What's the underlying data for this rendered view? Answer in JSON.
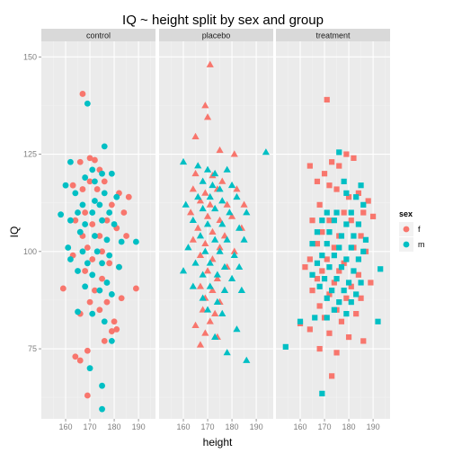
{
  "chart_data": {
    "type": "scatter",
    "title": "IQ ~ height split by sex and group",
    "xlabel": "height",
    "ylabel": "IQ",
    "xlim": [
      150,
      197
    ],
    "ylim": [
      57,
      154
    ],
    "xticks": [
      160,
      170,
      180,
      190
    ],
    "yticks": [
      75,
      100,
      125,
      150
    ],
    "panel_order": [
      "control",
      "placebo",
      "treatment"
    ],
    "panels": [
      {
        "group": "control",
        "shape": "circle"
      },
      {
        "group": "placebo",
        "shape": "triangle"
      },
      {
        "group": "treatment",
        "shape": "square"
      }
    ],
    "legend": {
      "title": "sex",
      "position": "right",
      "entries": [
        {
          "key": "f",
          "label": "f",
          "color": "#F8766D"
        },
        {
          "key": "m",
          "label": "m",
          "color": "#00BFC4"
        }
      ]
    },
    "colors": {
      "f": "#F8766D",
      "m": "#00BFC4"
    },
    "background": {
      "panel": "#EBEBEB",
      "strip": "#D9D9D9",
      "grid": "#FFFFFF"
    },
    "points": {
      "control": {
        "f": [
          [
            167,
            140.5
          ],
          [
            166,
            123
          ],
          [
            170,
            124
          ],
          [
            172,
            123.5
          ],
          [
            174,
            121
          ],
          [
            176,
            118
          ],
          [
            163,
            117
          ],
          [
            167,
            116
          ],
          [
            170,
            118
          ],
          [
            182,
            115
          ],
          [
            186,
            114
          ],
          [
            173,
            116
          ],
          [
            179,
            112
          ],
          [
            184,
            110
          ],
          [
            168,
            110
          ],
          [
            164,
            108
          ],
          [
            171,
            107
          ],
          [
            177,
            108
          ],
          [
            181,
            106
          ],
          [
            167,
            104
          ],
          [
            174,
            104
          ],
          [
            185,
            104
          ],
          [
            169,
            101
          ],
          [
            175,
            100
          ],
          [
            163,
            99
          ],
          [
            171,
            98
          ],
          [
            178,
            97
          ],
          [
            182,
            96
          ],
          [
            168,
            95
          ],
          [
            175,
            93
          ],
          [
            159,
            90.5
          ],
          [
            189,
            90.5
          ],
          [
            172,
            90
          ],
          [
            183,
            88
          ],
          [
            170,
            87
          ],
          [
            177,
            87
          ],
          [
            166,
            84
          ],
          [
            174,
            85
          ],
          [
            180,
            82
          ],
          [
            179,
            79.5
          ],
          [
            181,
            80
          ],
          [
            176,
            77
          ],
          [
            169,
            74.5
          ],
          [
            164,
            73
          ],
          [
            166,
            72
          ],
          [
            169,
            63
          ]
        ],
        "m": [
          [
            169,
            138
          ],
          [
            176,
            127
          ],
          [
            162,
            123
          ],
          [
            171,
            121
          ],
          [
            175,
            120
          ],
          [
            179,
            120
          ],
          [
            168,
            119
          ],
          [
            172,
            118
          ],
          [
            160,
            117
          ],
          [
            164,
            115
          ],
          [
            176,
            115
          ],
          [
            181,
            114
          ],
          [
            167,
            112
          ],
          [
            172,
            113
          ],
          [
            174,
            112
          ],
          [
            165,
            110
          ],
          [
            171,
            110
          ],
          [
            178,
            110
          ],
          [
            158,
            109.5
          ],
          [
            162,
            108
          ],
          [
            168,
            107
          ],
          [
            175,
            108
          ],
          [
            180,
            107
          ],
          [
            166,
            105
          ],
          [
            172,
            104
          ],
          [
            177,
            103
          ],
          [
            183,
            102.5
          ],
          [
            189,
            102.5
          ],
          [
            161,
            101
          ],
          [
            167,
            100
          ],
          [
            173,
            100
          ],
          [
            178,
            99
          ],
          [
            162,
            98
          ],
          [
            169,
            97
          ],
          [
            175,
            97
          ],
          [
            182,
            96
          ],
          [
            165,
            95
          ],
          [
            171,
            94
          ],
          [
            177,
            92
          ],
          [
            168,
            91
          ],
          [
            174,
            90
          ],
          [
            179,
            89
          ],
          [
            165,
            84.5
          ],
          [
            171,
            84
          ],
          [
            176,
            82
          ],
          [
            179,
            77
          ],
          [
            170,
            70
          ],
          [
            175,
            65.5
          ],
          [
            175,
            59.5
          ]
        ]
      },
      "placebo": {
        "f": [
          [
            171,
            148
          ],
          [
            169,
            137.5
          ],
          [
            170,
            134.5
          ],
          [
            165,
            129.5
          ],
          [
            175,
            126
          ],
          [
            181,
            125
          ],
          [
            165,
            120
          ],
          [
            172,
            119.5
          ],
          [
            176,
            118
          ],
          [
            164,
            116
          ],
          [
            169,
            115
          ],
          [
            174,
            116
          ],
          [
            182,
            116
          ],
          [
            167,
            113
          ],
          [
            171,
            112
          ],
          [
            178,
            112
          ],
          [
            185,
            112
          ],
          [
            163,
            110
          ],
          [
            170,
            109
          ],
          [
            175,
            108
          ],
          [
            180,
            109
          ],
          [
            166,
            106
          ],
          [
            172,
            105
          ],
          [
            177,
            104
          ],
          [
            184,
            106
          ],
          [
            164,
            103
          ],
          [
            169,
            102
          ],
          [
            175,
            101
          ],
          [
            181,
            100
          ],
          [
            167,
            99
          ],
          [
            172,
            98
          ],
          [
            178,
            96
          ],
          [
            170,
            95
          ],
          [
            174,
            93
          ],
          [
            167,
            91
          ],
          [
            172,
            90
          ],
          [
            177,
            90
          ],
          [
            169,
            88
          ],
          [
            175,
            87
          ],
          [
            168,
            85
          ],
          [
            173,
            84
          ],
          [
            171,
            82
          ],
          [
            165,
            81
          ],
          [
            169,
            79
          ],
          [
            174,
            78
          ],
          [
            167,
            76
          ]
        ],
        "m": [
          [
            194,
            125.5
          ],
          [
            160,
            123
          ],
          [
            166,
            122
          ],
          [
            170,
            121
          ],
          [
            173,
            120
          ],
          [
            178,
            121
          ],
          [
            168,
            118
          ],
          [
            172,
            117
          ],
          [
            175,
            116
          ],
          [
            180,
            117
          ],
          [
            166,
            114
          ],
          [
            171,
            114
          ],
          [
            176,
            113
          ],
          [
            182,
            114
          ],
          [
            161,
            112
          ],
          [
            168,
            111
          ],
          [
            173,
            111
          ],
          [
            179,
            110
          ],
          [
            186,
            110
          ],
          [
            164,
            108
          ],
          [
            170,
            107
          ],
          [
            176,
            107
          ],
          [
            183,
            106
          ],
          [
            167,
            104
          ],
          [
            173,
            103
          ],
          [
            178,
            103
          ],
          [
            185,
            103
          ],
          [
            162,
            101
          ],
          [
            169,
            100
          ],
          [
            175,
            100
          ],
          [
            181,
            99
          ],
          [
            165,
            97
          ],
          [
            171,
            97
          ],
          [
            177,
            96
          ],
          [
            183,
            96
          ],
          [
            160,
            95
          ],
          [
            168,
            94
          ],
          [
            174,
            94
          ],
          [
            180,
            93
          ],
          [
            164,
            91
          ],
          [
            171,
            91
          ],
          [
            177,
            90
          ],
          [
            184,
            90
          ],
          [
            168,
            88
          ],
          [
            174,
            87
          ],
          [
            170,
            85
          ],
          [
            176,
            84
          ],
          [
            182,
            80
          ],
          [
            173,
            78
          ],
          [
            178,
            74
          ],
          [
            186,
            72
          ]
        ]
      },
      "treatment": {
        "f": [
          [
            171,
            139
          ],
          [
            179,
            125
          ],
          [
            182,
            124
          ],
          [
            173,
            123
          ],
          [
            176,
            122
          ],
          [
            164,
            122
          ],
          [
            170,
            120
          ],
          [
            167,
            118
          ],
          [
            172,
            117
          ],
          [
            175,
            116
          ],
          [
            180,
            114
          ],
          [
            184,
            115
          ],
          [
            188,
            113
          ],
          [
            168,
            112
          ],
          [
            178,
            110
          ],
          [
            186,
            110
          ],
          [
            190,
            109
          ],
          [
            165,
            108
          ],
          [
            172,
            108
          ],
          [
            181,
            108
          ],
          [
            169,
            105
          ],
          [
            176,
            104
          ],
          [
            185,
            104
          ],
          [
            167,
            102
          ],
          [
            174,
            101
          ],
          [
            182,
            101
          ],
          [
            187,
            100
          ],
          [
            164,
            98
          ],
          [
            171,
            98
          ],
          [
            178,
            97
          ],
          [
            162,
            96
          ],
          [
            169,
            95
          ],
          [
            176,
            95
          ],
          [
            184,
            94
          ],
          [
            167,
            93
          ],
          [
            174,
            92
          ],
          [
            181,
            91
          ],
          [
            189,
            92
          ],
          [
            165,
            90
          ],
          [
            172,
            89
          ],
          [
            179,
            88
          ],
          [
            185,
            88
          ],
          [
            168,
            86
          ],
          [
            175,
            85
          ],
          [
            183,
            84
          ],
          [
            170,
            83
          ],
          [
            177,
            82
          ],
          [
            160,
            81.5
          ],
          [
            164,
            80
          ],
          [
            172,
            79
          ],
          [
            180,
            78
          ],
          [
            186,
            77
          ],
          [
            168,
            75
          ],
          [
            175,
            74
          ],
          [
            173,
            68
          ]
        ],
        "m": [
          [
            176,
            125.5
          ],
          [
            178,
            118
          ],
          [
            185,
            117
          ],
          [
            179,
            115
          ],
          [
            183,
            114
          ],
          [
            186,
            112
          ],
          [
            171,
            110
          ],
          [
            175,
            110
          ],
          [
            181,
            110
          ],
          [
            169,
            108
          ],
          [
            174,
            108
          ],
          [
            179,
            107
          ],
          [
            184,
            107
          ],
          [
            167,
            105
          ],
          [
            172,
            105
          ],
          [
            177,
            104
          ],
          [
            182,
            104
          ],
          [
            187,
            103
          ],
          [
            165,
            102
          ],
          [
            171,
            102
          ],
          [
            176,
            101
          ],
          [
            181,
            101
          ],
          [
            186,
            100
          ],
          [
            169,
            99
          ],
          [
            174,
            99
          ],
          [
            179,
            98
          ],
          [
            184,
            98
          ],
          [
            167,
            97
          ],
          [
            172,
            96
          ],
          [
            177,
            96
          ],
          [
            182,
            95
          ],
          [
            193,
            95.5
          ],
          [
            165,
            94
          ],
          [
            170,
            93
          ],
          [
            175,
            93
          ],
          [
            180,
            92
          ],
          [
            185,
            92
          ],
          [
            168,
            91
          ],
          [
            173,
            90
          ],
          [
            178,
            90
          ],
          [
            183,
            89
          ],
          [
            171,
            88
          ],
          [
            176,
            87
          ],
          [
            181,
            87
          ],
          [
            174,
            85
          ],
          [
            179,
            84
          ],
          [
            166,
            83
          ],
          [
            171,
            83
          ],
          [
            160,
            82
          ],
          [
            192,
            82
          ],
          [
            154,
            75.5
          ],
          [
            169,
            63.5
          ]
        ]
      }
    }
  }
}
